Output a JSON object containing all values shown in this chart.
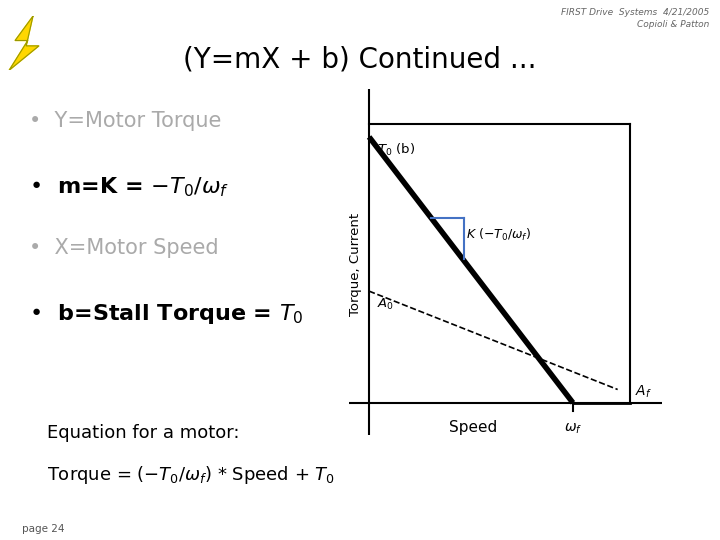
{
  "bg_color": "#ffffff",
  "header_line1": "FIRST Drive  Systems  4/21/2005",
  "header_line2": "Copioli & Patton",
  "title": "(Y=mX + b) Continued ...",
  "footer_page": "page 24",
  "eq_label": "Equation for a motor:",
  "plot_ylabel": "Torque, Current",
  "plot_xlabel": "Speed",
  "gray_color": "#aaaaaa",
  "blue_color": "#4472C4",
  "title_fontsize": 20,
  "bullet_fontsize": 15,
  "eq_fontsize": 13
}
